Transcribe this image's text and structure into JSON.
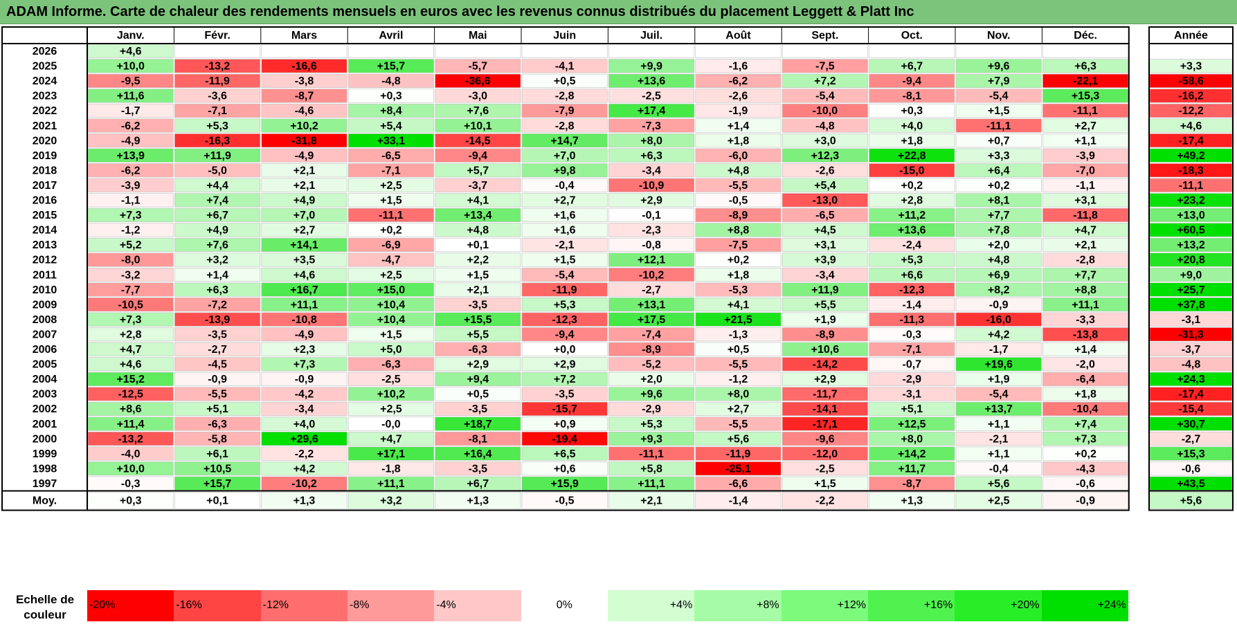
{
  "title": "ADAM Informe. Carte de chaleur des rendements mensuels en euros avec les revenus connus distribués du placement Leggett & Platt Inc",
  "chart_data": {
    "type": "heatmap",
    "title": "ADAM Informe. Carte de chaleur des rendements mensuels en euros avec les revenus connus distribués du placement Leggett & Platt Inc",
    "months": [
      "Janv.",
      "Févr.",
      "Mars",
      "Avril",
      "Mai",
      "Juin",
      "Juil.",
      "Août",
      "Sept.",
      "Oct.",
      "Nov.",
      "Déc."
    ],
    "year_header": "Année",
    "rows": [
      {
        "year": "2026",
        "values": [
          "+4,6",
          null,
          null,
          null,
          null,
          null,
          null,
          null,
          null,
          null,
          null,
          null
        ],
        "annual": null
      },
      {
        "year": "2025",
        "values": [
          "+10,0",
          "-13,2",
          "-16,6",
          "+15,7",
          "-5,7",
          "-4,1",
          "+9,9",
          "-1,6",
          "-7,5",
          "+6,7",
          "+9,6",
          "+6,3"
        ],
        "annual": "+3,3"
      },
      {
        "year": "2024",
        "values": [
          "-9,5",
          "-11,9",
          "-3,8",
          "-4,8",
          "-36,6",
          "+0,5",
          "+13,6",
          "-6,2",
          "+7,2",
          "-9,4",
          "+7,9",
          "-22,1"
        ],
        "annual": "-58,6"
      },
      {
        "year": "2023",
        "values": [
          "+11,6",
          "-3,6",
          "-8,7",
          "+0,3",
          "-3,0",
          "-2,8",
          "-2,5",
          "-2,6",
          "-5,4",
          "-8,1",
          "-5,4",
          "+15,3"
        ],
        "annual": "-16,2"
      },
      {
        "year": "2022",
        "values": [
          "-1,7",
          "-7,1",
          "-4,6",
          "+8,4",
          "+7,6",
          "-7,9",
          "+17,4",
          "-1,9",
          "-10,0",
          "+0,3",
          "+1,5",
          "-11,1"
        ],
        "annual": "-12,2"
      },
      {
        "year": "2021",
        "values": [
          "-6,2",
          "+5,3",
          "+10,2",
          "+5,4",
          "+10,1",
          "-2,8",
          "-7,3",
          "+1,4",
          "-4,8",
          "+4,0",
          "-11,1",
          "+2,7"
        ],
        "annual": "+4,6"
      },
      {
        "year": "2020",
        "values": [
          "-4,9",
          "-16,3",
          "-31,8",
          "+33,1",
          "-14,5",
          "+14,7",
          "+8,0",
          "+1,8",
          "+3,0",
          "+1,8",
          "+0,7",
          "+1,1"
        ],
        "annual": "-17,4"
      },
      {
        "year": "2019",
        "values": [
          "+13,9",
          "+11,9",
          "-4,9",
          "-6,5",
          "-9,4",
          "+7,0",
          "+6,3",
          "-6,0",
          "+12,3",
          "+22,8",
          "+3,3",
          "-3,9"
        ],
        "annual": "+49,2"
      },
      {
        "year": "2018",
        "values": [
          "-6,2",
          "-5,0",
          "+2,1",
          "-7,1",
          "+5,7",
          "+9,8",
          "-3,4",
          "+4,8",
          "-2,6",
          "-15,0",
          "+6,4",
          "-7,0"
        ],
        "annual": "-18,3"
      },
      {
        "year": "2017",
        "values": [
          "-3,9",
          "+4,4",
          "+2,1",
          "+2,5",
          "-3,7",
          "-0,4",
          "-10,9",
          "-5,5",
          "+5,4",
          "+0,2",
          "+0,2",
          "-1,1"
        ],
        "annual": "-11,1"
      },
      {
        "year": "2016",
        "values": [
          "-1,1",
          "+7,4",
          "+4,9",
          "+1,5",
          "+4,1",
          "+2,7",
          "+2,9",
          "-0,5",
          "-13,0",
          "+2,8",
          "+8,1",
          "+3,1"
        ],
        "annual": "+23,2"
      },
      {
        "year": "2015",
        "values": [
          "+7,3",
          "+6,7",
          "+7,0",
          "-11,1",
          "+13,4",
          "+1,6",
          "-0,1",
          "-8,9",
          "-6,5",
          "+11,2",
          "+7,7",
          "-11,8"
        ],
        "annual": "+13,0"
      },
      {
        "year": "2014",
        "values": [
          "-1,2",
          "+4,9",
          "+2,7",
          "+0,2",
          "+4,8",
          "+1,6",
          "-2,3",
          "+8,8",
          "+4,5",
          "+13,6",
          "+7,8",
          "+4,7"
        ],
        "annual": "+60,5"
      },
      {
        "year": "2013",
        "values": [
          "+5,2",
          "+7,6",
          "+14,1",
          "-6,9",
          "+0,1",
          "-2,1",
          "-0,8",
          "-7,5",
          "+3,1",
          "-2,4",
          "+2,0",
          "+2,1"
        ],
        "annual": "+13,2"
      },
      {
        "year": "2012",
        "values": [
          "-8,0",
          "+3,2",
          "+3,5",
          "-4,7",
          "+2,2",
          "+1,5",
          "+12,1",
          "+0,2",
          "+3,9",
          "+5,3",
          "+4,8",
          "-2,8"
        ],
        "annual": "+20,8"
      },
      {
        "year": "2011",
        "values": [
          "-3,2",
          "+1,4",
          "+4,6",
          "+2,5",
          "+1,5",
          "-5,4",
          "-10,2",
          "+1,8",
          "-3,4",
          "+6,6",
          "+6,9",
          "+7,7"
        ],
        "annual": "+9,0"
      },
      {
        "year": "2010",
        "values": [
          "-7,7",
          "+6,3",
          "+16,7",
          "+15,0",
          "+2,1",
          "-11,9",
          "-2,7",
          "-5,3",
          "+11,9",
          "-12,3",
          "+8,2",
          "+8,8"
        ],
        "annual": "+25,7"
      },
      {
        "year": "2009",
        "values": [
          "-10,5",
          "-7,2",
          "+11,1",
          "+10,4",
          "-3,5",
          "+5,3",
          "+13,1",
          "+4,1",
          "+5,5",
          "-1,4",
          "-0,9",
          "+11,1"
        ],
        "annual": "+37,8"
      },
      {
        "year": "2008",
        "values": [
          "+7,3",
          "-13,9",
          "-10,8",
          "+10,4",
          "+15,5",
          "-12,3",
          "+17,5",
          "+21,5",
          "+1,9",
          "-11,3",
          "-16,0",
          "-3,3"
        ],
        "annual": "-3,1"
      },
      {
        "year": "2007",
        "values": [
          "+2,8",
          "-3,5",
          "-4,9",
          "+1,5",
          "+5,5",
          "-9,4",
          "-7,4",
          "-1,3",
          "-8,9",
          "-0,3",
          "+4,2",
          "-13,8"
        ],
        "annual": "-31,3"
      },
      {
        "year": "2006",
        "values": [
          "+4,7",
          "-2,7",
          "+2,3",
          "+5,0",
          "-6,3",
          "+0,0",
          "-8,9",
          "+0,5",
          "+10,6",
          "-7,1",
          "-1,7",
          "+1,4"
        ],
        "annual": "-3,7"
      },
      {
        "year": "2005",
        "values": [
          "+4,6",
          "-4,5",
          "+7,3",
          "-6,3",
          "+2,9",
          "+2,9",
          "-5,2",
          "-5,5",
          "-14,2",
          "-0,7",
          "+19,6",
          "-2,0"
        ],
        "annual": "-4,8"
      },
      {
        "year": "2004",
        "values": [
          "+15,2",
          "-0,9",
          "-0,9",
          "-2,5",
          "+9,4",
          "+7,2",
          "+2,0",
          "-1,2",
          "+2,9",
          "-2,9",
          "+1,9",
          "-6,4"
        ],
        "annual": "+24,3"
      },
      {
        "year": "2003",
        "values": [
          "-12,5",
          "-5,5",
          "-4,2",
          "+10,2",
          "+0,5",
          "-3,5",
          "+9,6",
          "+8,0",
          "-11,7",
          "-3,1",
          "-5,4",
          "+1,8"
        ],
        "annual": "-17,4"
      },
      {
        "year": "2002",
        "values": [
          "+8,6",
          "+5,1",
          "-3,4",
          "+2,5",
          "-3,5",
          "-15,7",
          "-2,9",
          "+2,7",
          "-14,1",
          "+5,1",
          "+13,7",
          "-10,4"
        ],
        "annual": "-15,4"
      },
      {
        "year": "2001",
        "values": [
          "+11,4",
          "-6,3",
          "+4,0",
          "-0,0",
          "+18,7",
          "+0,9",
          "+5,3",
          "-5,5",
          "-17,1",
          "+12,5",
          "+1,1",
          "+7,4"
        ],
        "annual": "+30,7"
      },
      {
        "year": "2000",
        "values": [
          "-13,2",
          "-5,8",
          "+29,6",
          "+4,7",
          "-8,1",
          "-19,4",
          "+9,3",
          "+5,6",
          "-9,6",
          "+8,0",
          "-2,1",
          "+7,3"
        ],
        "annual": "-2,7"
      },
      {
        "year": "1999",
        "values": [
          "-4,0",
          "+6,1",
          "-2,2",
          "+17,1",
          "+16,4",
          "+6,5",
          "-11,1",
          "-11,9",
          "-12,0",
          "+14,2",
          "+1,1",
          "+0,2"
        ],
        "annual": "+15,3"
      },
      {
        "year": "1998",
        "values": [
          "+10,0",
          "+10,5",
          "+4,2",
          "-1,8",
          "-3,5",
          "+0,6",
          "+5,8",
          "-25,1",
          "-2,5",
          "+11,7",
          "-0,4",
          "-4,3"
        ],
        "annual": "-0,6"
      },
      {
        "year": "1997",
        "values": [
          "-0,3",
          "+15,7",
          "-10,2",
          "+11,1",
          "+6,7",
          "+15,9",
          "+11,1",
          "-6,6",
          "+1,5",
          "-8,7",
          "+5,6",
          "-0,6"
        ],
        "annual": "+43,5"
      }
    ],
    "average": {
      "label": "Moy.",
      "values": [
        "+0,3",
        "+0,1",
        "+1,3",
        "+3,2",
        "+1,3",
        "-0,5",
        "+2,1",
        "-1,4",
        "-2,2",
        "+1,3",
        "+2,5",
        "-0,9"
      ],
      "annual": "+5,6"
    },
    "color_scale": {
      "label": "Echelle de couleur",
      "stops": [
        {
          "label": "-20%",
          "color": "#ff0000"
        },
        {
          "label": "-16%",
          "color": "#ff4444"
        },
        {
          "label": "-12%",
          "color": "#ff6e6e"
        },
        {
          "label": "-8%",
          "color": "#ff9a9a"
        },
        {
          "label": "-4%",
          "color": "#ffc8c8"
        },
        {
          "label": "0%",
          "color": "#ffffff"
        },
        {
          "label": "+4%",
          "color": "#d2fed2"
        },
        {
          "label": "+8%",
          "color": "#a6fca6"
        },
        {
          "label": "+12%",
          "color": "#7cfa7c"
        },
        {
          "label": "+16%",
          "color": "#50f250"
        },
        {
          "label": "+20%",
          "color": "#28ee28"
        },
        {
          "label": "+24%",
          "color": "#00e000"
        }
      ]
    }
  }
}
